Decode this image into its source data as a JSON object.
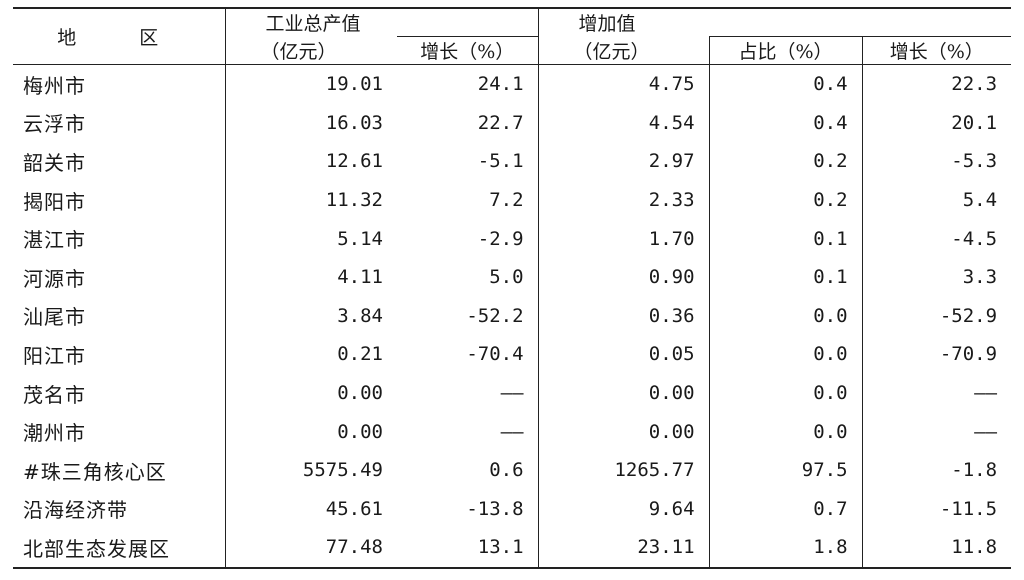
{
  "header": {
    "region": "地　区",
    "gross_output_group": "工业总产值",
    "gross_output_unit": "（亿元）",
    "gross_output_growth": "增长（%）",
    "added_value_group": "增加值",
    "added_value_unit": "（亿元）",
    "added_value_share": "占比（%）",
    "added_value_growth": "增长（%）"
  },
  "rows": [
    {
      "region": "梅州市",
      "output": "19.01",
      "output_growth": "24.1",
      "value_added": "4.75",
      "share": "0.4",
      "va_growth": "22.3"
    },
    {
      "region": "云浮市",
      "output": "16.03",
      "output_growth": "22.7",
      "value_added": "4.54",
      "share": "0.4",
      "va_growth": "20.1"
    },
    {
      "region": "韶关市",
      "output": "12.61",
      "output_growth": "-5.1",
      "value_added": "2.97",
      "share": "0.2",
      "va_growth": "-5.3"
    },
    {
      "region": "揭阳市",
      "output": "11.32",
      "output_growth": "7.2",
      "value_added": "2.33",
      "share": "0.2",
      "va_growth": "5.4"
    },
    {
      "region": "湛江市",
      "output": "5.14",
      "output_growth": "-2.9",
      "value_added": "1.70",
      "share": "0.1",
      "va_growth": "-4.5"
    },
    {
      "region": "河源市",
      "output": "4.11",
      "output_growth": "5.0",
      "value_added": "0.90",
      "share": "0.1",
      "va_growth": "3.3"
    },
    {
      "region": "汕尾市",
      "output": "3.84",
      "output_growth": "-52.2",
      "value_added": "0.36",
      "share": "0.0",
      "va_growth": "-52.9"
    },
    {
      "region": "阳江市",
      "output": "0.21",
      "output_growth": "-70.4",
      "value_added": "0.05",
      "share": "0.0",
      "va_growth": "-70.9"
    },
    {
      "region": "茂名市",
      "output": "0.00",
      "output_growth": "——",
      "value_added": "0.00",
      "share": "0.0",
      "va_growth": "——"
    },
    {
      "region": "潮州市",
      "output": "0.00",
      "output_growth": "——",
      "value_added": "0.00",
      "share": "0.0",
      "va_growth": "——"
    },
    {
      "region": "#珠三角核心区",
      "output": "5575.49",
      "output_growth": "0.6",
      "value_added": "1265.77",
      "share": "97.5",
      "va_growth": "-1.8"
    },
    {
      "region": "沿海经济带",
      "output": "45.61",
      "output_growth": "-13.8",
      "value_added": "9.64",
      "share": "0.7",
      "va_growth": "-11.5"
    },
    {
      "region": "北部生态发展区",
      "output": "77.48",
      "output_growth": "13.1",
      "value_added": "23.11",
      "share": "1.8",
      "va_growth": "11.8"
    }
  ]
}
